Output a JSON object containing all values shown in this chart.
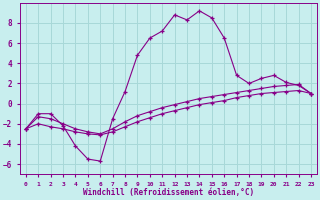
{
  "xlabel": "Windchill (Refroidissement éolien,°C)",
  "ylabel": "",
  "xlim": [
    -0.5,
    23.5
  ],
  "ylim": [
    -7,
    10
  ],
  "yticks": [
    -6,
    -4,
    -2,
    0,
    2,
    4,
    6,
    8
  ],
  "xticks": [
    0,
    1,
    2,
    3,
    4,
    5,
    6,
    7,
    8,
    9,
    10,
    11,
    12,
    13,
    14,
    15,
    16,
    17,
    18,
    19,
    20,
    21,
    22,
    23
  ],
  "bg_color": "#c8eeee",
  "grid_color": "#a8d8d8",
  "line_color": "#880088",
  "lines": [
    {
      "x": [
        0,
        1,
        2,
        3,
        4,
        5,
        6,
        7,
        8,
        9,
        10,
        11,
        12,
        13,
        14,
        15,
        16,
        17,
        18,
        19,
        20,
        21,
        22,
        23
      ],
      "y": [
        -2.5,
        -1.0,
        -1.0,
        -2.2,
        -4.2,
        -5.5,
        -5.7,
        -1.5,
        1.2,
        4.8,
        6.5,
        7.2,
        8.8,
        8.3,
        9.2,
        8.5,
        6.5,
        2.8,
        2.0,
        2.5,
        2.8,
        2.1,
        1.8,
        1.0
      ]
    },
    {
      "x": [
        0,
        1,
        2,
        3,
        4,
        5,
        6,
        7,
        8,
        9,
        10,
        11,
        12,
        13,
        14,
        15,
        16,
        17,
        18,
        19,
        20,
        21,
        22,
        23
      ],
      "y": [
        -2.5,
        -1.3,
        -1.5,
        -2.0,
        -2.5,
        -2.8,
        -3.0,
        -2.5,
        -1.8,
        -1.2,
        -0.8,
        -0.4,
        -0.1,
        0.2,
        0.5,
        0.7,
        0.9,
        1.1,
        1.3,
        1.5,
        1.7,
        1.8,
        1.9,
        1.0
      ]
    },
    {
      "x": [
        0,
        1,
        2,
        3,
        4,
        5,
        6,
        7,
        8,
        9,
        10,
        11,
        12,
        13,
        14,
        15,
        16,
        17,
        18,
        19,
        20,
        21,
        22,
        23
      ],
      "y": [
        -2.5,
        -2.0,
        -2.3,
        -2.5,
        -2.8,
        -3.0,
        -3.1,
        -2.8,
        -2.3,
        -1.8,
        -1.4,
        -1.0,
        -0.7,
        -0.4,
        -0.1,
        0.1,
        0.3,
        0.6,
        0.8,
        1.0,
        1.1,
        1.2,
        1.3,
        1.0
      ]
    }
  ]
}
